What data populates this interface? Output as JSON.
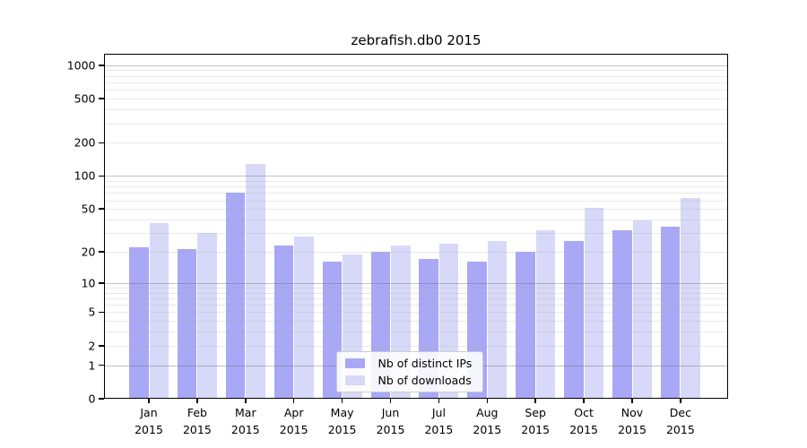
{
  "title": "zebrafish.db0 2015",
  "chart_data": {
    "type": "bar",
    "title": "zebrafish.db0 2015",
    "categories": [
      "Jan",
      "Feb",
      "Mar",
      "Apr",
      "May",
      "Jun",
      "Jul",
      "Aug",
      "Sep",
      "Oct",
      "Nov",
      "Dec"
    ],
    "category_year": "2015",
    "series": [
      {
        "name": "Nb of distinct IPs",
        "color": "#a8a8f6",
        "values": [
          22,
          21,
          71,
          23,
          16,
          20,
          17,
          16,
          20,
          25,
          32,
          34
        ]
      },
      {
        "name": "Nb of downloads",
        "color": "#d8d8f8",
        "values": [
          37,
          30,
          128,
          28,
          19,
          23,
          24,
          25,
          32,
          51,
          39,
          63
        ]
      }
    ],
    "xlabel": "",
    "ylabel": "",
    "yscale": "log10(1+y)",
    "yticks": [
      0,
      1,
      2,
      5,
      10,
      20,
      50,
      100,
      200,
      500,
      1000
    ],
    "ylim": [
      0,
      1278
    ],
    "grid": true,
    "gridline_major_values": [
      1,
      10,
      100,
      1000
    ],
    "legend_position": "lower center",
    "colors": {
      "bar_distinct_ips": "#a8a8f6",
      "bar_downloads": "#d8d8f8",
      "grid_major": "#c9c9c9",
      "grid_minor": "#ececec",
      "axis": "#000000"
    }
  }
}
